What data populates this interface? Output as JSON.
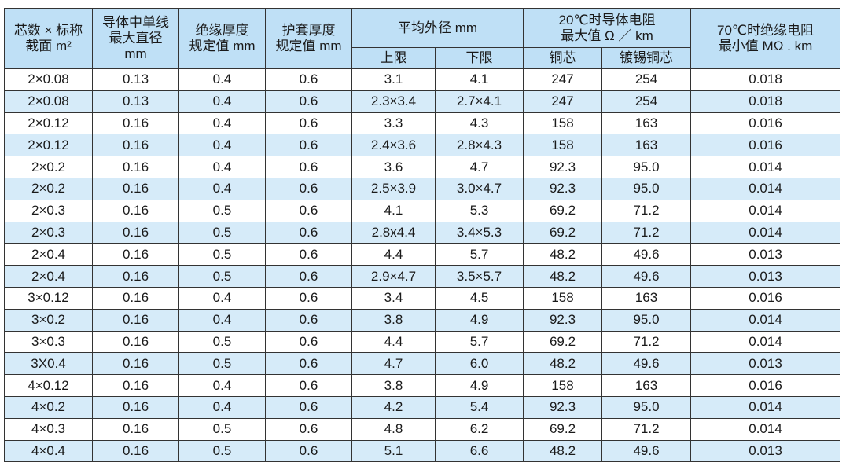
{
  "table": {
    "columns": [
      {
        "lines": [
          "芯数 × 标称",
          "截面 m²"
        ]
      },
      {
        "lines": [
          "导体中单线",
          "最大直径",
          "mm"
        ]
      },
      {
        "lines": [
          "绝缘厚度",
          "规定值 mm"
        ]
      },
      {
        "lines": [
          "护套厚度",
          "规定值 mm"
        ]
      },
      {
        "lines": [
          "平均外径 mm"
        ],
        "sub": [
          "上限",
          "下限"
        ]
      },
      {
        "lines": [
          "20℃时导体电阻",
          "最大值 Ω ／ km"
        ],
        "sub": [
          "铜芯",
          "镀锡铜芯"
        ]
      },
      {
        "lines": [
          "70℃时绝缘电阻",
          "最小值 MΩ . km"
        ]
      }
    ],
    "rows": [
      [
        "2×0.08",
        "0.13",
        "0.4",
        "0.6",
        "3.1",
        "4.1",
        "247",
        "254",
        "0.018"
      ],
      [
        "2×0.08",
        "0.13",
        "0.4",
        "0.6",
        "2.3×3.4",
        "2.7×4.1",
        "247",
        "254",
        "0.018"
      ],
      [
        "2×0.12",
        "0.16",
        "0.4",
        "0.6",
        "3.3",
        "4.3",
        "158",
        "163",
        "0.016"
      ],
      [
        "2×0.12",
        "0.16",
        "0.4",
        "0.6",
        "2.4×3.6",
        "2.8×4.3",
        "158",
        "163",
        "0.016"
      ],
      [
        "2×0.2",
        "0.16",
        "0.4",
        "0.6",
        "3.6",
        "4.7",
        "92.3",
        "95.0",
        "0.014"
      ],
      [
        "2×0.2",
        "0.16",
        "0.4",
        "0.6",
        "2.5×3.9",
        "3.0×4.7",
        "92.3",
        "95.0",
        "0.014"
      ],
      [
        "2×0.3",
        "0.16",
        "0.5",
        "0.6",
        "4.1",
        "5.3",
        "69.2",
        "71.2",
        "0.014"
      ],
      [
        "2×0.3",
        "0.16",
        "0.5",
        "0.6",
        "2.8x4.4",
        "3.4×5.3",
        "69.2",
        "71.2",
        "0.014"
      ],
      [
        "2×0.4",
        "0.16",
        "0.5",
        "0.6",
        "4.4",
        "5.7",
        "48.2",
        "49.6",
        "0.013"
      ],
      [
        "2×0.4",
        "0.16",
        "0.5",
        "0.6",
        "2.9×4.7",
        "3.5×5.7",
        "48.2",
        "49.6",
        "0.013"
      ],
      [
        "3×0.12",
        "0.16",
        "0.4",
        "0.6",
        "3.4",
        "4.5",
        "158",
        "163",
        "0.016"
      ],
      [
        "3×0.2",
        "0.16",
        "0.4",
        "0.6",
        "3.8",
        "4.9",
        "92.3",
        "95.0",
        "0.014"
      ],
      [
        "3×0.3",
        "0.16",
        "0.5",
        "0.6",
        "4.4",
        "5.7",
        "69.2",
        "71.2",
        "0.014"
      ],
      [
        "3X0.4",
        "0.16",
        "0.5",
        "0.6",
        "4.7",
        "6.0",
        "48.2",
        "49.6",
        "0.013"
      ],
      [
        "4×0.12",
        "0.16",
        "0.4",
        "0.6",
        "3.8",
        "4.9",
        "158",
        "163",
        "0.016"
      ],
      [
        "4×0.2",
        "0.16",
        "0.4",
        "0.6",
        "4.2",
        "5.4",
        "92.3",
        "95.0",
        "0.014"
      ],
      [
        "4×0.3",
        "0.16",
        "0.5",
        "0.6",
        "4.8",
        "6.2",
        "69.2",
        "71.2",
        "0.014"
      ],
      [
        "4×0.4",
        "0.16",
        "0.5",
        "0.6",
        "5.1",
        "6.6",
        "48.2",
        "49.6",
        "0.013"
      ]
    ]
  }
}
